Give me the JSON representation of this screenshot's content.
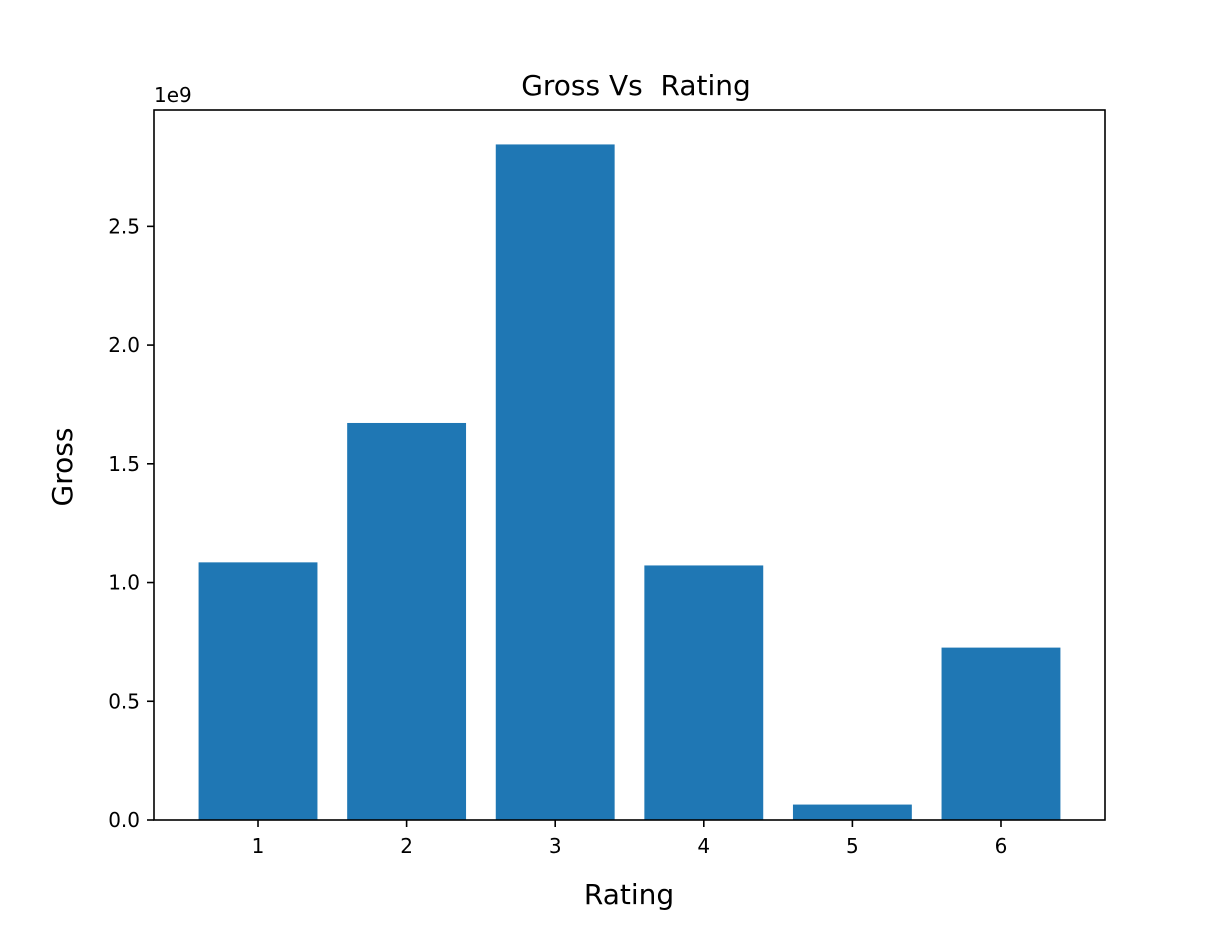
{
  "chart_data": {
    "type": "bar",
    "title": "Gross Vs  Rating",
    "xlabel": "Rating",
    "ylabel": "Gross",
    "y_offset_text": "1e9",
    "y_scale": 1000000000,
    "categories": [
      "1",
      "2",
      "3",
      "4",
      "5",
      "6"
    ],
    "x": [
      1,
      2,
      3,
      4,
      5,
      6
    ],
    "values": [
      1085000000,
      1672000000,
      2845000000,
      1072000000,
      65000000,
      726000000
    ],
    "xlim": [
      0.3,
      6.7
    ],
    "ylim": [
      0,
      2.99
    ],
    "yticks": [
      0.0,
      0.5,
      1.0,
      1.5,
      2.0,
      2.5
    ],
    "ytick_labels": [
      "0.0",
      "0.5",
      "1.0",
      "1.5",
      "2.0",
      "2.5"
    ],
    "bar_color": "#1f77b4",
    "grid": false,
    "legend": "none"
  }
}
